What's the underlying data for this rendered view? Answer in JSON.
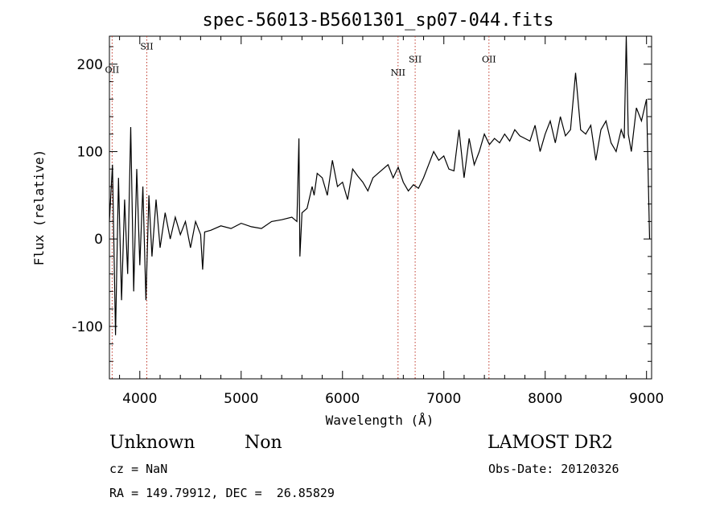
{
  "chart_data": {
    "type": "line",
    "title": "spec-56013-B5601301_sp07-044.fits",
    "xlabel": "Wavelength (Å)",
    "ylabel": "Flux (relative)",
    "xlim": [
      3700,
      9050
    ],
    "ylim": [
      -160,
      232
    ],
    "xticks": [
      4000,
      5000,
      6000,
      7000,
      8000,
      9000
    ],
    "yticks": [
      -100,
      0,
      100,
      200
    ],
    "grid": false,
    "lines": [
      {
        "label": "OII",
        "x": 3727,
        "label_y": 190
      },
      {
        "label": "SII",
        "x": 4069,
        "label_y": 217
      },
      {
        "label": "NII",
        "x": 6548,
        "label_y": 187
      },
      {
        "label": "SII",
        "x": 6717,
        "label_y": 202
      },
      {
        "label": "OII",
        "x": 7445,
        "label_y": 202
      }
    ],
    "spectrum": {
      "x": [
        3700,
        3730,
        3760,
        3790,
        3820,
        3850,
        3880,
        3910,
        3940,
        3970,
        4000,
        4030,
        4060,
        4090,
        4120,
        4160,
        4200,
        4250,
        4300,
        4350,
        4400,
        4450,
        4500,
        4550,
        4600,
        4620,
        4640,
        4700,
        4800,
        4900,
        5000,
        5100,
        5200,
        5300,
        5400,
        5500,
        5550,
        5570,
        5580,
        5600,
        5650,
        5700,
        5720,
        5750,
        5800,
        5850,
        5900,
        5950,
        6000,
        6050,
        6100,
        6150,
        6200,
        6250,
        6300,
        6350,
        6400,
        6450,
        6500,
        6550,
        6600,
        6650,
        6700,
        6750,
        6800,
        6850,
        6900,
        6950,
        7000,
        7050,
        7100,
        7150,
        7200,
        7250,
        7300,
        7350,
        7400,
        7450,
        7500,
        7550,
        7600,
        7650,
        7700,
        7750,
        7800,
        7850,
        7900,
        7950,
        8000,
        8050,
        8100,
        8150,
        8200,
        8250,
        8300,
        8350,
        8400,
        8450,
        8500,
        8550,
        8600,
        8650,
        8700,
        8750,
        8780,
        8800,
        8820,
        8850,
        8900,
        8950,
        9000,
        9030
      ],
      "y": [
        20,
        85,
        -110,
        70,
        -70,
        45,
        -40,
        128,
        -60,
        80,
        -30,
        60,
        -70,
        50,
        -20,
        45,
        -10,
        30,
        0,
        25,
        5,
        20,
        -10,
        20,
        5,
        -35,
        8,
        10,
        15,
        12,
        18,
        14,
        12,
        20,
        22,
        25,
        20,
        115,
        -20,
        30,
        35,
        60,
        50,
        75,
        70,
        50,
        90,
        60,
        65,
        45,
        80,
        72,
        65,
        55,
        70,
        75,
        80,
        85,
        70,
        82,
        65,
        55,
        62,
        58,
        70,
        85,
        100,
        90,
        95,
        80,
        78,
        125,
        70,
        115,
        85,
        100,
        120,
        108,
        115,
        110,
        120,
        112,
        125,
        118,
        115,
        112,
        130,
        100,
        120,
        135,
        110,
        140,
        118,
        125,
        190,
        125,
        120,
        130,
        90,
        125,
        135,
        110,
        100,
        125,
        115,
        235,
        120,
        100,
        150,
        135,
        160,
        0
      ]
    }
  },
  "info": {
    "object_class": "Unknown",
    "object_subclass": "Non",
    "redshift": "cz = NaN",
    "coords": "RA = 149.79912, DEC =  26.85829",
    "survey": "LAMOST DR2",
    "obs_date": "Obs-Date: 20120326"
  }
}
